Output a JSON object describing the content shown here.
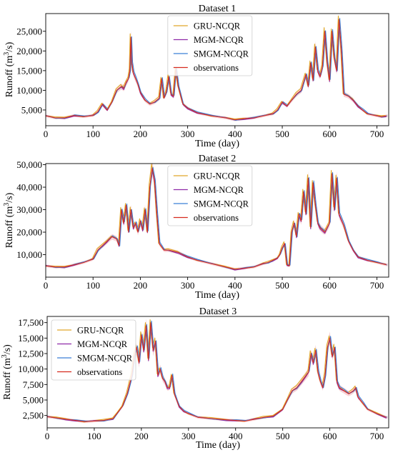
{
  "series_styles": [
    {
      "name": "GRU-NCQR",
      "color": "#e0a82a"
    },
    {
      "name": "MGM-NCQR",
      "color": "#8e2aa8"
    },
    {
      "name": "SMGM-NCQR",
      "color": "#3a7fd6"
    },
    {
      "name": "observations",
      "color": "#d62b1f"
    }
  ],
  "band_color": "#f6c8cc",
  "chart_data": [
    {
      "type": "line",
      "title": "Dataset 1",
      "xlabel": "Time (day)",
      "ylabel_main": "Runoff (m",
      "ylabel_sup": "3",
      "ylabel_tail": "/s)",
      "xlim": [
        0,
        725
      ],
      "ylim": [
        1000,
        29500
      ],
      "xticks": [
        0,
        100,
        200,
        300,
        400,
        500,
        600,
        700
      ],
      "yticks": [
        5000,
        10000,
        15000,
        20000,
        25000
      ],
      "ytick_labels": [
        "5,000",
        "10,000",
        "15,000",
        "20,000",
        "25,000"
      ],
      "legend_position": "top-center",
      "series": [
        {
          "name": "GRU-NCQR"
        },
        {
          "name": "MGM-NCQR"
        },
        {
          "name": "SMGM-NCQR"
        },
        {
          "name": "observations"
        }
      ],
      "observations": {
        "x": [
          0,
          20,
          40,
          60,
          80,
          100,
          110,
          120,
          130,
          140,
          150,
          160,
          165,
          170,
          175,
          178,
          180,
          182,
          185,
          190,
          195,
          200,
          205,
          210,
          220,
          230,
          240,
          245,
          250,
          255,
          260,
          265,
          270,
          275,
          280,
          290,
          300,
          320,
          350,
          380,
          400,
          420,
          440,
          460,
          480,
          490,
          500,
          510,
          520,
          530,
          540,
          550,
          555,
          560,
          565,
          570,
          575,
          580,
          585,
          590,
          595,
          600,
          605,
          610,
          615,
          620,
          625,
          630,
          640,
          650,
          660,
          670,
          680,
          700,
          710,
          720
        ],
        "y": [
          3500,
          3000,
          3000,
          3600,
          3300,
          3600,
          4500,
          6500,
          5000,
          7000,
          10000,
          11000,
          10500,
          12000,
          13000,
          15000,
          23500,
          17000,
          14500,
          13000,
          11500,
          9500,
          8500,
          7500,
          6500,
          7000,
          8000,
          13000,
          8000,
          9500,
          13500,
          9000,
          8500,
          15500,
          11000,
          6500,
          5500,
          4300,
          3500,
          3000,
          2500,
          2800,
          3000,
          3500,
          4000,
          5000,
          7000,
          6000,
          7500,
          9000,
          10000,
          14000,
          11000,
          17000,
          12500,
          21000,
          15000,
          13500,
          16000,
          25000,
          17000,
          12500,
          25000,
          18000,
          15000,
          28000,
          20000,
          9000,
          8500,
          7500,
          6000,
          5000,
          4000,
          3500,
          3300,
          3500
        ]
      }
    },
    {
      "type": "line",
      "title": "Dataset 2",
      "xlabel": "Time (day)",
      "ylabel_main": "Runoff (m",
      "ylabel_sup": "3",
      "ylabel_tail": "/s)",
      "xlim": [
        0,
        725
      ],
      "ylim": [
        0,
        50500
      ],
      "xticks": [
        0,
        100,
        200,
        300,
        400,
        500,
        600,
        700
      ],
      "yticks": [
        10000,
        20000,
        30000,
        40000,
        50000
      ],
      "ytick_labels": [
        "10,000",
        "20,000",
        "30,000",
        "40,000",
        "50,000"
      ],
      "legend_position": "top-center",
      "series": [
        {
          "name": "GRU-NCQR"
        },
        {
          "name": "MGM-NCQR"
        },
        {
          "name": "SMGM-NCQR"
        },
        {
          "name": "observations"
        }
      ],
      "observations": {
        "x": [
          0,
          20,
          40,
          60,
          80,
          100,
          110,
          120,
          130,
          140,
          150,
          155,
          160,
          165,
          170,
          175,
          180,
          185,
          190,
          195,
          200,
          205,
          210,
          215,
          220,
          225,
          230,
          235,
          240,
          250,
          260,
          280,
          300,
          320,
          350,
          380,
          400,
          420,
          440,
          460,
          470,
          480,
          490,
          495,
          500,
          505,
          510,
          515,
          520,
          525,
          530,
          535,
          540,
          545,
          550,
          555,
          560,
          565,
          570,
          575,
          580,
          590,
          600,
          605,
          610,
          615,
          620,
          630,
          640,
          650,
          660,
          680,
          700,
          720
        ],
        "y": [
          5000,
          4500,
          4500,
          5500,
          6500,
          8000,
          12000,
          14000,
          16000,
          18000,
          17000,
          14000,
          30000,
          24000,
          32000,
          20000,
          30000,
          22000,
          24000,
          20000,
          25000,
          21000,
          30000,
          20000,
          40000,
          48500,
          43000,
          28000,
          15000,
          12000,
          12000,
          11000,
          9000,
          7500,
          6000,
          4500,
          3500,
          4000,
          4500,
          6000,
          6500,
          7500,
          8500,
          10000,
          13000,
          15000,
          5500,
          5000,
          20000,
          24000,
          18000,
          28000,
          25000,
          38000,
          28000,
          44000,
          22000,
          42000,
          32000,
          24000,
          22000,
          20000,
          24000,
          46000,
          30000,
          44000,
          28000,
          23000,
          16000,
          12000,
          9000,
          7500,
          6500,
          5500
        ]
      }
    },
    {
      "type": "line",
      "title": "Dataset 3",
      "xlabel": "Time (day)",
      "ylabel_main": "Runoff (m",
      "ylabel_sup": "3",
      "ylabel_tail": "/s)",
      "xlim": [
        0,
        725
      ],
      "ylim": [
        500,
        18500
      ],
      "xticks": [
        0,
        100,
        200,
        300,
        400,
        500,
        600,
        700
      ],
      "yticks": [
        2500,
        5000,
        7500,
        10000,
        12500,
        15000,
        17500
      ],
      "ytick_labels": [
        "2,500",
        "5,000",
        "7,500",
        "10,000",
        "12,500",
        "15,000",
        "17,500"
      ],
      "legend_position": "top-left",
      "series": [
        {
          "name": "GRU-NCQR"
        },
        {
          "name": "MGM-NCQR"
        },
        {
          "name": "SMGM-NCQR"
        },
        {
          "name": "observations"
        }
      ],
      "observations": {
        "x": [
          0,
          20,
          40,
          60,
          80,
          100,
          120,
          140,
          150,
          160,
          170,
          180,
          185,
          190,
          195,
          200,
          205,
          210,
          215,
          220,
          225,
          230,
          235,
          240,
          245,
          250,
          255,
          260,
          265,
          270,
          275,
          280,
          290,
          300,
          320,
          350,
          380,
          400,
          420,
          440,
          460,
          480,
          500,
          510,
          520,
          530,
          540,
          550,
          555,
          560,
          565,
          570,
          575,
          580,
          585,
          590,
          595,
          600,
          605,
          610,
          615,
          620,
          630,
          640,
          650,
          655,
          660,
          670,
          680,
          700,
          720
        ],
        "y": [
          2300,
          2100,
          1900,
          1700,
          1500,
          1600,
          1700,
          2000,
          3000,
          4000,
          6000,
          9000,
          12000,
          13500,
          11000,
          15500,
          13000,
          17000,
          11500,
          17500,
          13000,
          14500,
          9000,
          10000,
          8500,
          8000,
          7000,
          7000,
          9000,
          6000,
          5000,
          4000,
          3200,
          2800,
          2200,
          2000,
          1800,
          1700,
          1600,
          1900,
          2200,
          2400,
          3500,
          5000,
          6500,
          7000,
          8000,
          9000,
          9500,
          12500,
          11000,
          13000,
          9500,
          8000,
          7000,
          9000,
          13500,
          15000,
          12000,
          13500,
          8000,
          7000,
          6500,
          6000,
          6500,
          7000,
          5500,
          4500,
          3500,
          2800,
          2200
        ]
      }
    }
  ]
}
